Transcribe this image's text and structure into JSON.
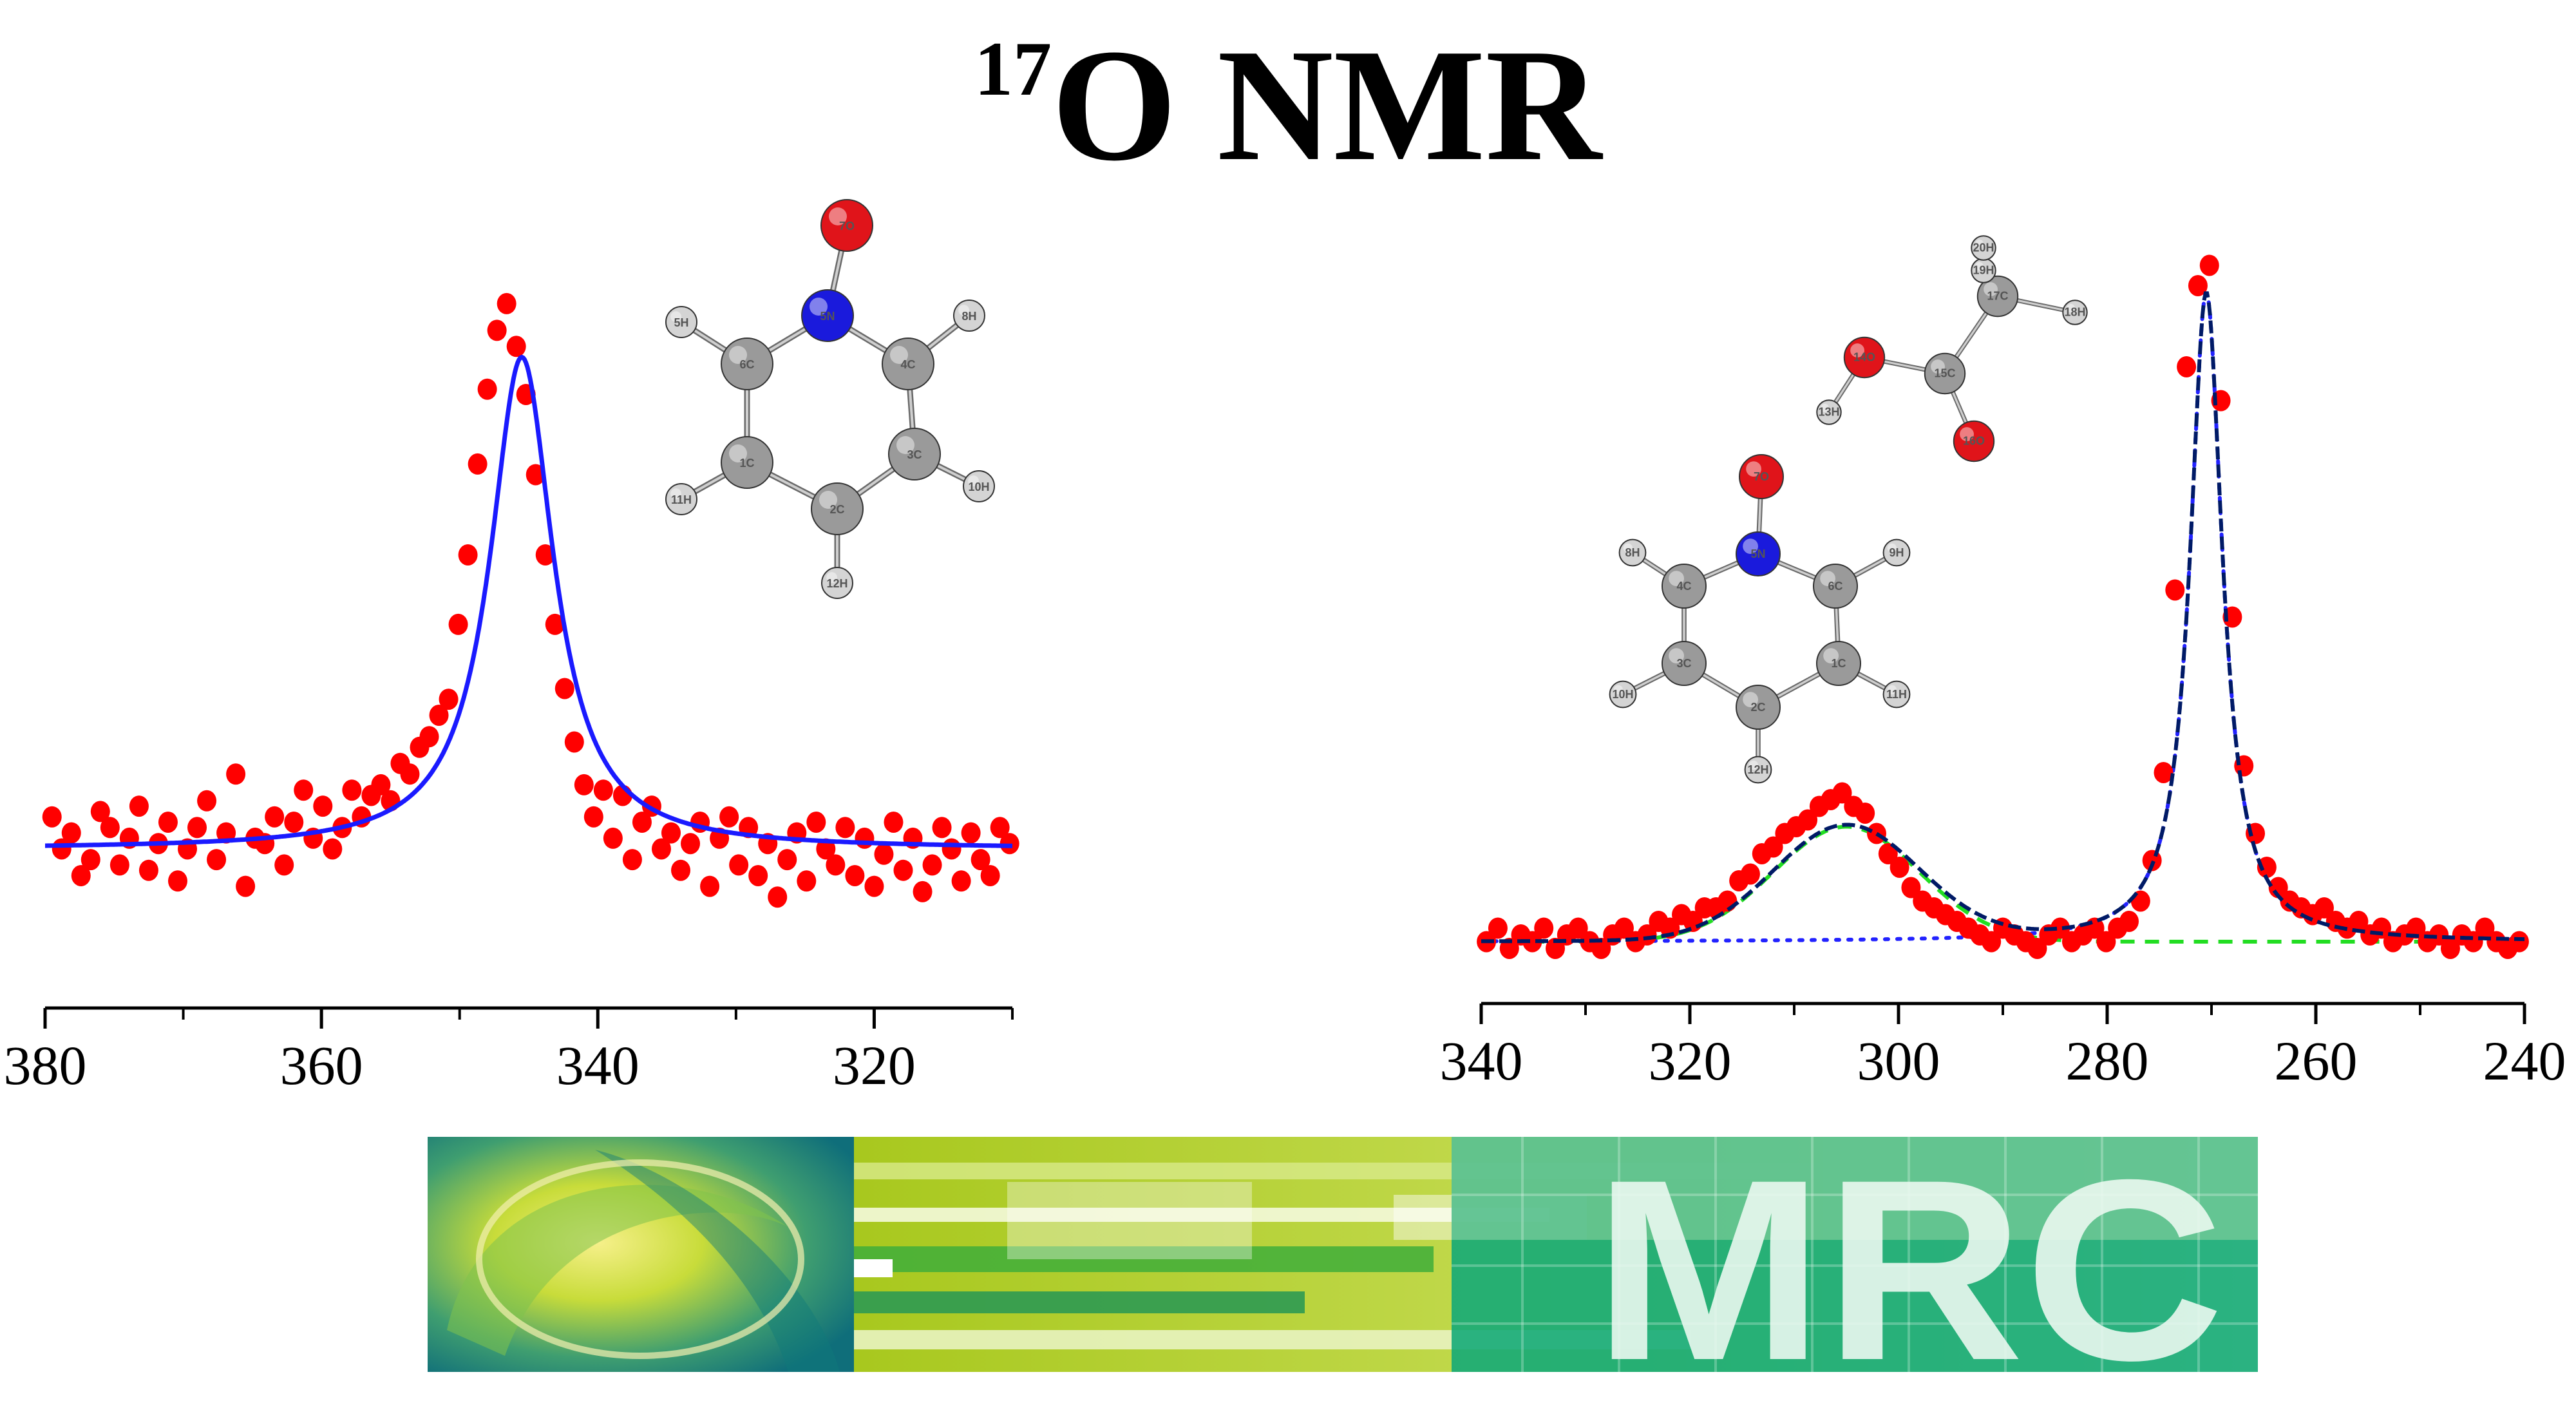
{
  "title": {
    "isotope": "17",
    "text": "O NMR"
  },
  "colors": {
    "points": "#ff0000",
    "fit_left": "#1a1aff",
    "fit_right": "#001a66",
    "component_green": "#22dd22",
    "baseline_blue": "#2222ff",
    "oxygen": "#e0141a",
    "nitrogen": "#1a1adc",
    "carbon": "#9a9a9a",
    "hydrogen": "#d4d4d4",
    "banner_green": "#10a878",
    "banner_lime": "#a9cd2a"
  },
  "chart_data": [
    {
      "type": "scatter",
      "x_axis_reversed": true,
      "xlim": [
        380,
        310
      ],
      "xticks": [
        380,
        360,
        340,
        320
      ],
      "tick_labels": [
        "380",
        "360",
        "340",
        "320"
      ],
      "grid": false,
      "y_axis_visible": false,
      "series": [
        {
          "kind": "points",
          "marker": "circle",
          "x": [
            379.5,
            378.8,
            378.1,
            377.4,
            376.7,
            376.0,
            375.3,
            374.6,
            373.9,
            373.2,
            372.5,
            371.8,
            371.1,
            370.4,
            369.7,
            369.0,
            368.3,
            367.6,
            366.9,
            366.2,
            365.5,
            364.8,
            364.1,
            363.4,
            362.7,
            362.0,
            361.3,
            360.6,
            359.9,
            359.2,
            358.5,
            357.8,
            357.1,
            356.4,
            355.7,
            355.0,
            354.3,
            353.6,
            352.9,
            352.2,
            351.5,
            350.8,
            350.1,
            349.4,
            348.7,
            348.0,
            347.3,
            346.6,
            345.9,
            345.2,
            344.5,
            343.8,
            343.1,
            342.4,
            341.7,
            341.0,
            340.3,
            339.6,
            338.9,
            338.2,
            337.5,
            336.8,
            336.1,
            335.4,
            334.7,
            334.0,
            333.3,
            332.6,
            331.9,
            331.2,
            330.5,
            329.8,
            329.1,
            328.4,
            327.7,
            327.0,
            326.3,
            325.6,
            324.9,
            324.2,
            323.5,
            322.8,
            322.1,
            321.4,
            320.7,
            320.0,
            319.3,
            318.6,
            317.9,
            317.2,
            316.5,
            315.8,
            315.1,
            314.4,
            313.7,
            313.0,
            312.3,
            311.6,
            310.9,
            310.2
          ],
          "y": [
            0.06,
            0.0,
            0.03,
            -0.05,
            -0.02,
            0.07,
            0.04,
            -0.03,
            0.02,
            0.08,
            -0.04,
            0.01,
            0.05,
            -0.06,
            0.0,
            0.04,
            0.09,
            -0.02,
            0.03,
            0.14,
            -0.07,
            0.02,
            0.01,
            0.06,
            -0.03,
            0.05,
            0.11,
            0.02,
            0.08,
            0.0,
            0.04,
            0.11,
            0.06,
            0.1,
            0.12,
            0.09,
            0.16,
            0.14,
            0.19,
            0.21,
            0.25,
            0.28,
            0.42,
            0.55,
            0.72,
            0.86,
            0.97,
            1.02,
            0.94,
            0.85,
            0.7,
            0.55,
            0.42,
            0.3,
            0.2,
            0.12,
            0.06,
            0.11,
            0.02,
            0.1,
            -0.02,
            0.05,
            0.08,
            0.0,
            0.03,
            -0.04,
            0.01,
            0.05,
            -0.07,
            0.02,
            0.06,
            -0.03,
            0.04,
            -0.05,
            0.01,
            -0.09,
            -0.02,
            0.03,
            -0.06,
            0.05,
            0.0,
            -0.03,
            0.04,
            -0.05,
            0.02,
            -0.07,
            -0.01,
            0.05,
            -0.04,
            0.02,
            -0.08,
            -0.03,
            0.04,
            0.0,
            -0.06,
            0.03,
            -0.02,
            -0.05,
            0.04,
            0.01
          ]
        },
        {
          "kind": "fit_line",
          "model": "lorentzian",
          "center": 345.5,
          "hwhm": 2.8,
          "amplitude": 0.92,
          "baseline": 0.0
        }
      ]
    },
    {
      "type": "scatter",
      "x_axis_reversed": true,
      "xlim": [
        340,
        240
      ],
      "xticks": [
        340,
        320,
        300,
        280,
        260,
        240
      ],
      "tick_labels": [
        "340",
        "320",
        "300",
        "280",
        "260",
        "240"
      ],
      "grid": false,
      "y_axis_visible": false,
      "series": [
        {
          "kind": "points",
          "marker": "circle",
          "x": [
            339.5,
            338.4,
            337.3,
            336.2,
            335.1,
            334.0,
            332.9,
            331.8,
            330.7,
            329.6,
            328.5,
            327.4,
            326.3,
            325.2,
            324.1,
            323.0,
            321.9,
            320.8,
            319.7,
            318.6,
            317.5,
            316.4,
            315.3,
            314.2,
            313.1,
            312.0,
            310.9,
            309.8,
            308.7,
            307.6,
            306.5,
            305.4,
            304.3,
            303.2,
            302.1,
            301.0,
            299.9,
            298.8,
            297.7,
            296.6,
            295.5,
            294.4,
            293.3,
            292.2,
            291.1,
            290.0,
            288.9,
            287.8,
            286.7,
            285.6,
            284.5,
            283.4,
            282.3,
            281.2,
            280.1,
            279.0,
            277.9,
            276.8,
            275.7,
            274.6,
            273.5,
            272.4,
            271.3,
            270.2,
            269.1,
            268.0,
            266.9,
            265.8,
            264.7,
            263.6,
            262.5,
            261.4,
            260.3,
            259.2,
            258.1,
            257.0,
            255.9,
            254.8,
            253.7,
            252.6,
            251.5,
            250.4,
            249.3,
            248.2,
            247.1,
            246.0,
            244.9,
            243.8,
            242.7,
            241.6,
            240.5
          ],
          "y": [
            0.0,
            0.02,
            -0.01,
            0.01,
            0.0,
            0.02,
            -0.01,
            0.01,
            0.02,
            0.0,
            -0.01,
            0.01,
            0.02,
            0.0,
            0.01,
            0.03,
            0.02,
            0.04,
            0.03,
            0.05,
            0.05,
            0.06,
            0.09,
            0.1,
            0.13,
            0.14,
            0.16,
            0.17,
            0.18,
            0.2,
            0.21,
            0.22,
            0.2,
            0.19,
            0.16,
            0.13,
            0.11,
            0.08,
            0.06,
            0.05,
            0.04,
            0.03,
            0.02,
            0.01,
            0.0,
            0.02,
            0.01,
            0.0,
            -0.01,
            0.01,
            0.02,
            0.0,
            0.01,
            0.02,
            0.0,
            0.02,
            0.03,
            0.06,
            0.12,
            0.25,
            0.52,
            0.85,
            0.97,
            1.0,
            0.8,
            0.48,
            0.26,
            0.16,
            0.11,
            0.08,
            0.06,
            0.05,
            0.04,
            0.05,
            0.03,
            0.02,
            0.03,
            0.01,
            0.02,
            0.0,
            0.01,
            0.02,
            0.0,
            0.01,
            -0.01,
            0.01,
            0.0,
            0.02,
            0.0,
            -0.01,
            0.0
          ]
        },
        {
          "kind": "fit_line",
          "style": "dashed",
          "model": "sum_of_components"
        },
        {
          "kind": "component",
          "style": "dashed",
          "model": "gaussian",
          "center": 305,
          "sigma": 7,
          "amplitude": 0.17
        },
        {
          "kind": "component",
          "style": "dotted",
          "model": "lorentzian",
          "center": 270.5,
          "hwhm": 1.9,
          "amplitude": 0.96
        }
      ]
    }
  ],
  "molecules": {
    "pyridine_n_oxide_left": {
      "atoms": [
        {
          "label": "7O",
          "el": "O"
        },
        {
          "label": "5N",
          "el": "N"
        },
        {
          "label": "6C",
          "el": "C"
        },
        {
          "label": "4C",
          "el": "C"
        },
        {
          "label": "1C",
          "el": "C"
        },
        {
          "label": "3C",
          "el": "C"
        },
        {
          "label": "2C",
          "el": "C"
        },
        {
          "label": "5H",
          "el": "H"
        },
        {
          "label": "8H",
          "el": "H"
        },
        {
          "label": "11H",
          "el": "H"
        },
        {
          "label": "10H",
          "el": "H"
        },
        {
          "label": "12H",
          "el": "H"
        }
      ]
    },
    "pyridine_n_oxide_right": {
      "atoms": [
        {
          "label": "7O",
          "el": "O"
        },
        {
          "label": "5N",
          "el": "N"
        },
        {
          "label": "4C",
          "el": "C"
        },
        {
          "label": "6C",
          "el": "C"
        },
        {
          "label": "3C",
          "el": "C"
        },
        {
          "label": "1C",
          "el": "C"
        },
        {
          "label": "2C",
          "el": "C"
        },
        {
          "label": "8H",
          "el": "H"
        },
        {
          "label": "9H",
          "el": "H"
        },
        {
          "label": "10H",
          "el": "H"
        },
        {
          "label": "11H",
          "el": "H"
        },
        {
          "label": "12H",
          "el": "H"
        }
      ]
    },
    "acetic_acid_right": {
      "atoms": [
        {
          "label": "14O",
          "el": "O"
        },
        {
          "label": "15C",
          "el": "C"
        },
        {
          "label": "16O",
          "el": "O"
        },
        {
          "label": "17C",
          "el": "C"
        },
        {
          "label": "13H",
          "el": "H"
        },
        {
          "label": "18H",
          "el": "H"
        },
        {
          "label": "19H",
          "el": "H"
        },
        {
          "label": "20H",
          "el": "H"
        }
      ]
    }
  },
  "banner": {
    "logo_text": "MRC"
  }
}
